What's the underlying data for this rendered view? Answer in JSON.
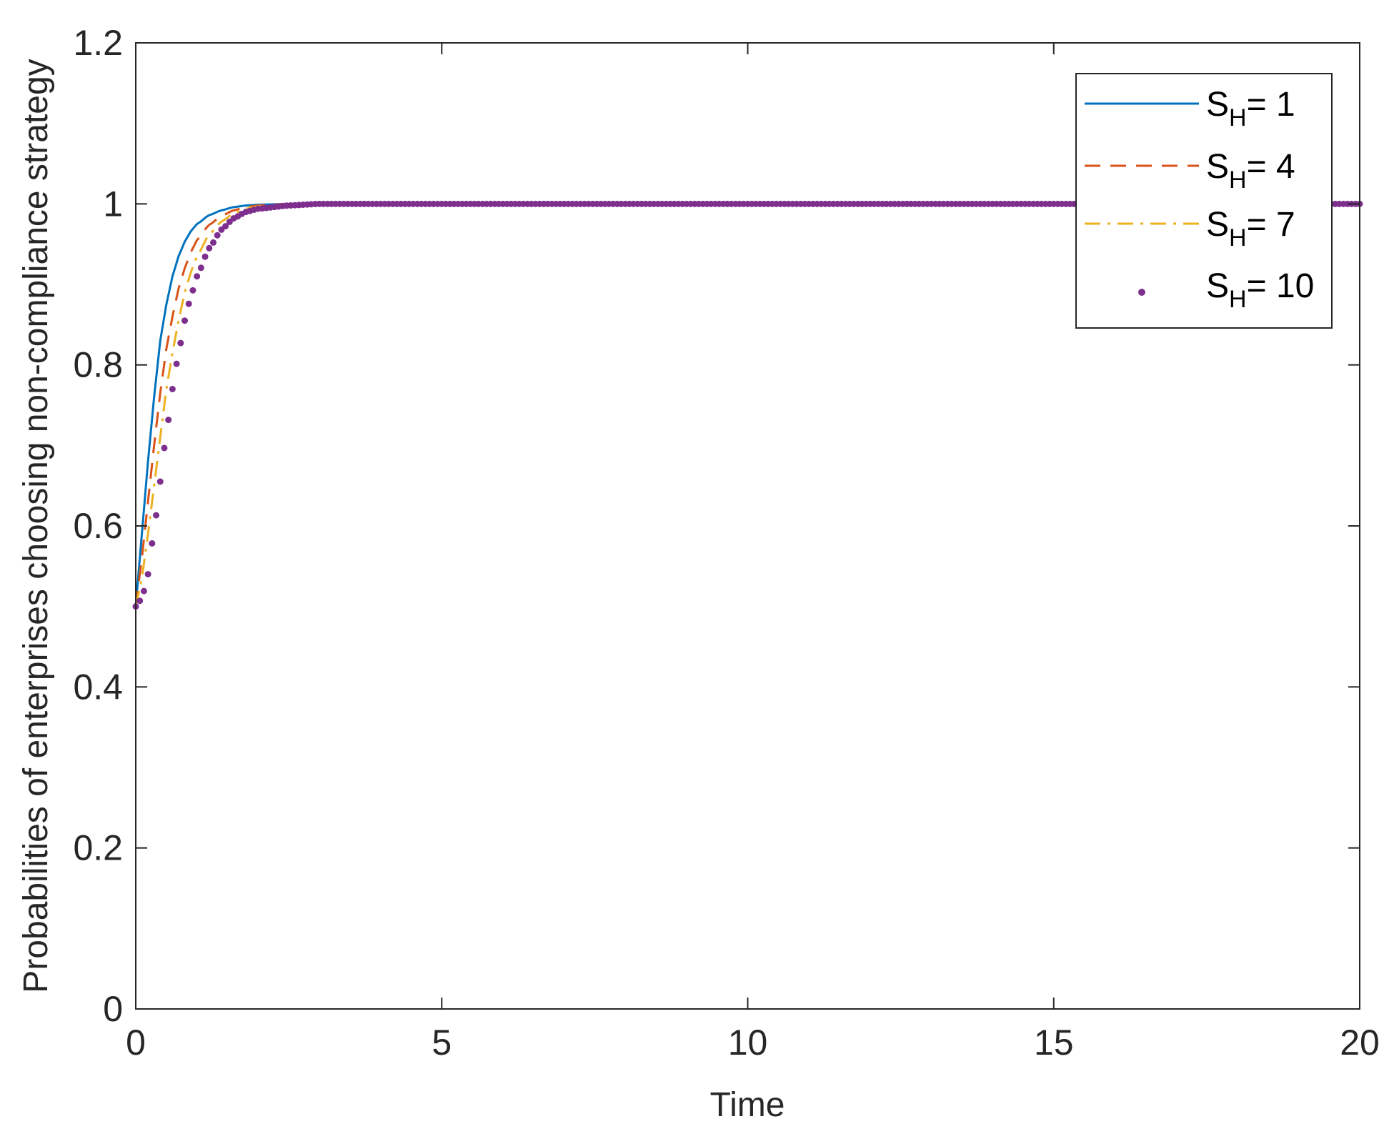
{
  "chart_data": {
    "type": "line",
    "title": "",
    "xlabel": "Time",
    "ylabel": "Probabilities of enterprises choosing non-compliance strategy",
    "xlim": [
      0,
      20
    ],
    "ylim": [
      0,
      1.2
    ],
    "xticks": [
      "0",
      "5",
      "10",
      "15",
      "20"
    ],
    "yticks": [
      "0",
      "0.2",
      "0.4",
      "0.6",
      "0.8",
      "1",
      "1.2"
    ],
    "grid": false,
    "legend_position": "top-right",
    "x": [
      0,
      0.1,
      0.2,
      0.3,
      0.4,
      0.5,
      0.6,
      0.7,
      0.8,
      0.9,
      1.0,
      1.2,
      1.4,
      1.6,
      1.8,
      2.0,
      2.5,
      3.0,
      4.0,
      5.0,
      6.0,
      8.0,
      10.0,
      12.0,
      14.0,
      16.0,
      18.0,
      20.0
    ],
    "series": [
      {
        "label_base": "S",
        "label_sub": "H",
        "label_value": "= 1",
        "style": "solid",
        "color": "#0072BD",
        "values": [
          0.5,
          0.59,
          0.68,
          0.76,
          0.83,
          0.875,
          0.91,
          0.935,
          0.953,
          0.966,
          0.975,
          0.986,
          0.992,
          0.996,
          0.998,
          0.999,
          1.0,
          1.0,
          1.0,
          1.0,
          1.0,
          1.0,
          1.0,
          1.0,
          1.0,
          1.0,
          1.0,
          1.0
        ]
      },
      {
        "label_base": "S",
        "label_sub": "H",
        "label_value": "= 4",
        "style": "dashed",
        "color": "#D95319",
        "values": [
          0.5,
          0.56,
          0.63,
          0.7,
          0.765,
          0.82,
          0.86,
          0.895,
          0.92,
          0.94,
          0.955,
          0.974,
          0.985,
          0.992,
          0.996,
          0.998,
          1.0,
          1.0,
          1.0,
          1.0,
          1.0,
          1.0,
          1.0,
          1.0,
          1.0,
          1.0,
          1.0,
          1.0
        ]
      },
      {
        "label_base": "S",
        "label_sub": "H",
        "label_value": "= 7",
        "style": "dashdot",
        "color": "#EDB120",
        "values": [
          0.5,
          0.535,
          0.59,
          0.65,
          0.71,
          0.77,
          0.815,
          0.855,
          0.89,
          0.915,
          0.935,
          0.962,
          0.978,
          0.988,
          0.994,
          0.997,
          0.999,
          1.0,
          1.0,
          1.0,
          1.0,
          1.0,
          1.0,
          1.0,
          1.0,
          1.0,
          1.0,
          1.0
        ]
      },
      {
        "label_base": "S",
        "label_sub": "H",
        "label_value": "= 10",
        "style": "dots",
        "color": "#7E2F8E",
        "values": [
          0.5,
          0.51,
          0.54,
          0.595,
          0.655,
          0.715,
          0.77,
          0.815,
          0.855,
          0.885,
          0.91,
          0.945,
          0.968,
          0.982,
          0.99,
          0.994,
          0.998,
          1.0,
          1.0,
          1.0,
          1.0,
          1.0,
          1.0,
          1.0,
          1.0,
          1.0,
          1.0,
          1.0
        ]
      }
    ]
  }
}
